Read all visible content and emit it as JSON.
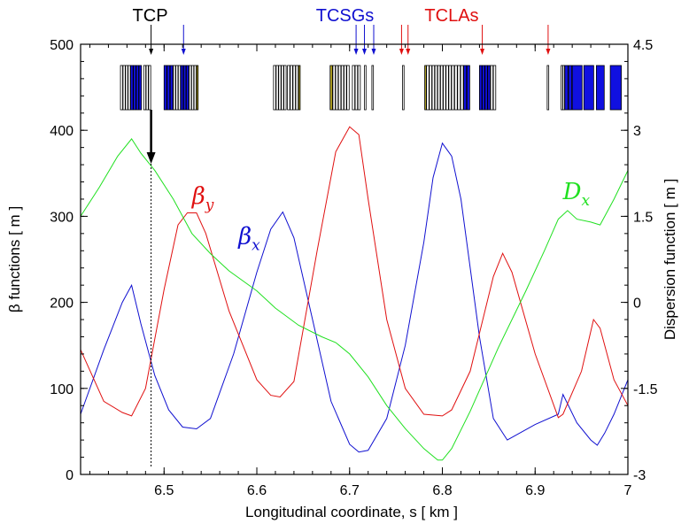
{
  "chart_data": {
    "type": "line",
    "xlabel": "Longitudinal coordinate, s [ km ]",
    "ylabel_left": "β functions [ m ]",
    "ylabel_right": "Dispersion function [ m ]",
    "xlim": [
      6.41,
      7.0
    ],
    "ylim_left": [
      0,
      500
    ],
    "ylim_right": [
      -3,
      4.5
    ],
    "x_ticks": [
      "6.5",
      "6.6",
      "6.7",
      "6.8",
      "6.9",
      "7"
    ],
    "x_tick_values": [
      6.5,
      6.6,
      6.7,
      6.8,
      6.9,
      7.0
    ],
    "y_ticks_left": [
      "0",
      "100",
      "200",
      "300",
      "400",
      "500"
    ],
    "y_tick_values_left": [
      0,
      100,
      200,
      300,
      400,
      500
    ],
    "y_ticks_right": [
      "-3",
      "-1.5",
      "0",
      "1.5",
      "3",
      "4.5"
    ],
    "y_tick_values_right": [
      -3,
      -1.5,
      0,
      1.5,
      3,
      4.5
    ],
    "series": [
      {
        "name": "beta_x",
        "label": "β",
        "subscript": "x",
        "axis": "left",
        "color": "#1010d0",
        "label_pos": [
          6.58,
          268
        ],
        "x": [
          6.41,
          6.435,
          6.455,
          6.465,
          6.475,
          6.49,
          6.505,
          6.52,
          6.535,
          6.55,
          6.575,
          6.6,
          6.615,
          6.628,
          6.64,
          6.66,
          6.68,
          6.7,
          6.71,
          6.72,
          6.74,
          6.76,
          6.78,
          6.79,
          6.8,
          6.81,
          6.82,
          6.84,
          6.855,
          6.87,
          6.9,
          6.925,
          6.93,
          6.945,
          6.96,
          6.967,
          6.975,
          6.985,
          7.0
        ],
        "y": [
          70,
          145,
          200,
          220,
          175,
          115,
          75,
          55,
          53,
          65,
          140,
          235,
          285,
          305,
          275,
          180,
          85,
          35,
          26,
          28,
          65,
          150,
          270,
          345,
          385,
          370,
          320,
          160,
          65,
          40,
          58,
          70,
          93,
          60,
          40,
          34,
          48,
          70,
          110
        ]
      },
      {
        "name": "beta_y",
        "label": "β",
        "subscript": "y",
        "axis": "left",
        "color": "#e01010",
        "label_pos": [
          6.53,
          315
        ],
        "x": [
          6.41,
          6.435,
          6.455,
          6.465,
          6.48,
          6.5,
          6.515,
          6.525,
          6.535,
          6.545,
          6.57,
          6.6,
          6.615,
          6.625,
          6.64,
          6.665,
          6.685,
          6.7,
          6.71,
          6.72,
          6.74,
          6.76,
          6.78,
          6.8,
          6.81,
          6.83,
          6.855,
          6.865,
          6.875,
          6.9,
          6.925,
          6.93,
          6.95,
          6.963,
          6.97,
          6.985,
          7.0
        ],
        "y": [
          145,
          85,
          72,
          68,
          100,
          215,
          290,
          304,
          304,
          280,
          190,
          110,
          92,
          90,
          108,
          260,
          375,
          404,
          395,
          320,
          180,
          100,
          70,
          68,
          75,
          120,
          230,
          257,
          235,
          140,
          66,
          70,
          120,
          180,
          170,
          110,
          80
        ]
      },
      {
        "name": "D_x",
        "label": "D",
        "subscript": "x",
        "axis": "right",
        "color": "#20e020",
        "label_pos": [
          6.93,
          320
        ],
        "x": [
          6.41,
          6.43,
          6.45,
          6.465,
          6.475,
          6.49,
          6.51,
          6.53,
          6.55,
          6.57,
          6.6,
          6.62,
          6.645,
          6.67,
          6.685,
          6.7,
          6.72,
          6.74,
          6.76,
          6.78,
          6.795,
          6.8,
          6.81,
          6.83,
          6.86,
          6.89,
          6.91,
          6.925,
          6.935,
          6.945,
          6.96,
          6.97,
          6.985,
          7.0
        ],
        "y": [
          1.5,
          2.0,
          2.55,
          2.85,
          2.6,
          2.3,
          1.8,
          1.2,
          0.85,
          0.55,
          0.2,
          -0.1,
          -0.4,
          -0.6,
          -0.7,
          -0.9,
          -1.3,
          -1.8,
          -2.2,
          -2.55,
          -2.75,
          -2.75,
          -2.55,
          -1.9,
          -0.8,
          0.2,
          0.9,
          1.45,
          1.6,
          1.45,
          1.4,
          1.35,
          1.8,
          2.3
        ]
      }
    ],
    "top_labels": [
      {
        "text": "TCP",
        "color": "#000000",
        "x": 6.485
      },
      {
        "text": "TCSGs",
        "color": "#1010d0",
        "x": 6.695
      },
      {
        "text": "TCLAs",
        "color": "#e01010",
        "x": 6.81
      }
    ],
    "markers": [
      {
        "x": 6.486,
        "color": "#000000"
      },
      {
        "x": 6.521,
        "color": "#1010d0"
      },
      {
        "x": 6.707,
        "color": "#1010d0"
      },
      {
        "x": 6.716,
        "color": "#1010d0"
      },
      {
        "x": 6.726,
        "color": "#1010d0"
      },
      {
        "x": 6.756,
        "color": "#e01010"
      },
      {
        "x": 6.763,
        "color": "#e01010"
      },
      {
        "x": 6.843,
        "color": "#e01010"
      },
      {
        "x": 6.914,
        "color": "#e01010"
      }
    ],
    "collimator_blocks": [
      {
        "x0": 6.453,
        "x1": 6.464,
        "fill": "#ffffff",
        "count": 4
      },
      {
        "x0": 6.464,
        "x1": 6.476,
        "fill": "#1010e0",
        "count": 4
      },
      {
        "x0": 6.478,
        "x1": 6.486,
        "fill": "#ffffff",
        "count": 3
      },
      {
        "x0": 6.5,
        "x1": 6.51,
        "fill": "#1010e0",
        "count": 3
      },
      {
        "x0": 6.51,
        "x1": 6.518,
        "fill": "#ffffff",
        "count": 3
      },
      {
        "x0": 6.518,
        "x1": 6.527,
        "fill": "#1010e0",
        "count": 3
      },
      {
        "x0": 6.527,
        "x1": 6.535,
        "fill": "#ffffff",
        "count": 3
      },
      {
        "x0": 6.535,
        "x1": 6.537,
        "fill": "#b0a020",
        "count": 1
      },
      {
        "x0": 6.618,
        "x1": 6.632,
        "fill": "#ffffff",
        "count": 5
      },
      {
        "x0": 6.633,
        "x1": 6.645,
        "fill": "#ffffff",
        "count": 4
      },
      {
        "x0": 6.645,
        "x1": 6.647,
        "fill": "#b0a020",
        "count": 1
      },
      {
        "x0": 6.679,
        "x1": 6.682,
        "fill": "#b0a020",
        "count": 1
      },
      {
        "x0": 6.682,
        "x1": 6.7,
        "fill": "#ffffff",
        "count": 6
      },
      {
        "x0": 6.703,
        "x1": 6.712,
        "fill": "#ffffff",
        "count": 3
      },
      {
        "x0": 6.716,
        "x1": 6.718,
        "fill": "#ffffff",
        "count": 1
      },
      {
        "x0": 6.724,
        "x1": 6.726,
        "fill": "#ffffff",
        "count": 1
      },
      {
        "x0": 6.757,
        "x1": 6.759,
        "fill": "#ffffff",
        "count": 1
      },
      {
        "x0": 6.781,
        "x1": 6.783,
        "fill": "#b0a020",
        "count": 1
      },
      {
        "x0": 6.783,
        "x1": 6.795,
        "fill": "#ffffff",
        "count": 4
      },
      {
        "x0": 6.795,
        "x1": 6.81,
        "fill": "#ffffff",
        "count": 5
      },
      {
        "x0": 6.81,
        "x1": 6.823,
        "fill": "#ffffff",
        "count": 4
      },
      {
        "x0": 6.823,
        "x1": 6.83,
        "fill": "#1010e0",
        "count": 2
      },
      {
        "x0": 6.84,
        "x1": 6.852,
        "fill": "#1010e0",
        "count": 4
      },
      {
        "x0": 6.852,
        "x1": 6.858,
        "fill": "#ffffff",
        "count": 2
      },
      {
        "x0": 6.913,
        "x1": 6.915,
        "fill": "#ffffff",
        "count": 1
      },
      {
        "x0": 6.928,
        "x1": 6.932,
        "fill": "#ffffff",
        "count": 2
      },
      {
        "x0": 6.932,
        "x1": 6.94,
        "fill": "#1010e0",
        "count": 2
      },
      {
        "x0": 6.94,
        "x1": 6.965,
        "fill": "#1010e0",
        "count": 2
      },
      {
        "x0": 6.966,
        "x1": 6.976,
        "fill": "#1010e0",
        "count": 1
      },
      {
        "x0": 6.981,
        "x1": 6.995,
        "fill": "#1010e0",
        "count": 1
      }
    ]
  }
}
